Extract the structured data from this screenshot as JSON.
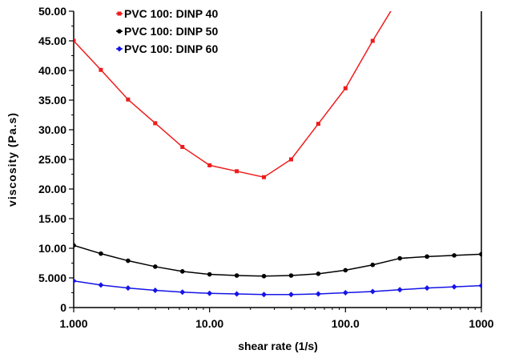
{
  "chart_data": {
    "type": "line",
    "xlabel": "shear rate (1/s)",
    "ylabel": "viscosity (Pa.s)",
    "xscale": "log",
    "xlim": [
      1,
      1000
    ],
    "ylim": [
      0,
      50
    ],
    "xticks": [
      {
        "value": 1,
        "label": "1.000"
      },
      {
        "value": 10,
        "label": "10.00"
      },
      {
        "value": 100,
        "label": "100.0"
      },
      {
        "value": 1000,
        "label": "1000"
      }
    ],
    "yticks": [
      {
        "value": 0,
        "label": "0"
      },
      {
        "value": 5,
        "label": "5.000"
      },
      {
        "value": 10,
        "label": "10.00"
      },
      {
        "value": 15,
        "label": "15.00"
      },
      {
        "value": 20,
        "label": "20.00"
      },
      {
        "value": 25,
        "label": "25.00"
      },
      {
        "value": 30,
        "label": "30.00"
      },
      {
        "value": 35,
        "label": "35.00"
      },
      {
        "value": 40,
        "label": "40.00"
      },
      {
        "value": 45,
        "label": "45.00"
      },
      {
        "value": 50,
        "label": "50.00"
      }
    ],
    "legend_position": "top-left",
    "series": [
      {
        "name": "PVC 100: DINP 40",
        "color": "#ee1c1c",
        "marker": "square",
        "x": [
          1,
          1.585,
          2.512,
          3.981,
          6.31,
          10,
          15.85,
          25.12,
          39.81,
          63.1,
          100,
          158.5,
          251.2
        ],
        "y": [
          45.0,
          40.1,
          35.1,
          31.1,
          27.1,
          24.0,
          23.0,
          22.0,
          25.0,
          31.0,
          37.0,
          45.0,
          52.5
        ]
      },
      {
        "name": "PVC 100: DINP 50",
        "color": "#000000",
        "marker": "circle",
        "x": [
          1,
          1.585,
          2.512,
          3.981,
          6.31,
          10,
          15.85,
          25.12,
          39.81,
          63.1,
          100,
          158.5,
          251.2,
          398.1,
          631,
          1000
        ],
        "y": [
          10.5,
          9.1,
          7.9,
          6.9,
          6.1,
          5.6,
          5.4,
          5.3,
          5.4,
          5.7,
          6.3,
          7.2,
          8.3,
          8.6,
          8.8,
          9.0
        ]
      },
      {
        "name": "PVC 100: DINP 60",
        "color": "#1414e6",
        "marker": "diamond",
        "x": [
          1,
          1.585,
          2.512,
          3.981,
          6.31,
          10,
          15.85,
          25.12,
          39.81,
          63.1,
          100,
          158.5,
          251.2,
          398.1,
          631,
          1000
        ],
        "y": [
          4.5,
          3.8,
          3.3,
          2.9,
          2.6,
          2.4,
          2.3,
          2.2,
          2.2,
          2.3,
          2.5,
          2.7,
          3.0,
          3.3,
          3.5,
          3.7
        ]
      }
    ]
  }
}
